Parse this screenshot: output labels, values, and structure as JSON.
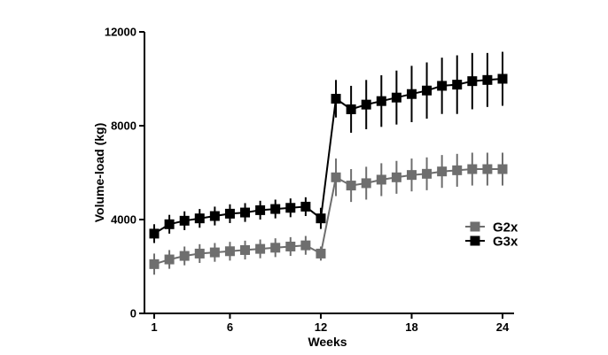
{
  "chart_data": {
    "type": "line",
    "xlabel": "Weeks",
    "ylabel": "Volume-load (kg)",
    "xlim": [
      1,
      24
    ],
    "ylim": [
      0,
      12000
    ],
    "x_ticks": [
      1,
      6,
      12,
      18,
      24
    ],
    "y_ticks": [
      0,
      4000,
      8000,
      12000
    ],
    "x_tick_labels": [
      "1",
      "6",
      "12",
      "18",
      "24"
    ],
    "y_tick_labels": [
      "0",
      "4000",
      "8000",
      "12000"
    ],
    "grid": false,
    "legend_position": "right",
    "error_bars": true,
    "x": [
      1,
      2,
      3,
      4,
      5,
      6,
      7,
      8,
      9,
      10,
      11,
      12,
      13,
      14,
      15,
      16,
      17,
      18,
      19,
      20,
      21,
      22,
      23,
      24
    ],
    "series": [
      {
        "name": "G2x",
        "color": "#6e6e6e",
        "marker": "square",
        "values": [
          2100,
          2300,
          2450,
          2550,
          2600,
          2650,
          2700,
          2750,
          2800,
          2850,
          2900,
          2550,
          5800,
          5450,
          5550,
          5700,
          5800,
          5900,
          5950,
          6050,
          6100,
          6150,
          6150,
          6150
        ],
        "errors": [
          450,
          400,
          400,
          400,
          400,
          400,
          400,
          400,
          400,
          400,
          400,
          300,
          800,
          700,
          700,
          700,
          700,
          700,
          700,
          700,
          700,
          700,
          700,
          700
        ]
      },
      {
        "name": "G3x",
        "color": "#000000",
        "marker": "square",
        "values": [
          3400,
          3800,
          3950,
          4050,
          4150,
          4250,
          4300,
          4400,
          4450,
          4500,
          4550,
          4050,
          9150,
          8700,
          8900,
          9050,
          9200,
          9350,
          9500,
          9700,
          9750,
          9900,
          9950,
          10000
        ],
        "errors": [
          400,
          400,
          400,
          400,
          400,
          400,
          400,
          400,
          400,
          400,
          400,
          450,
          800,
          1000,
          1050,
          1100,
          1150,
          1200,
          1200,
          1200,
          1250,
          1200,
          1150,
          1150
        ]
      }
    ]
  }
}
